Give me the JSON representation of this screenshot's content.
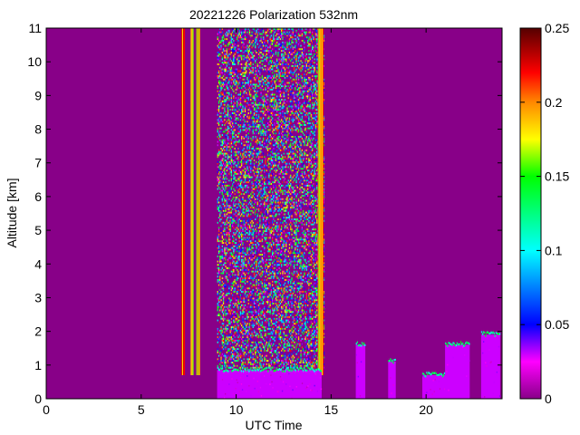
{
  "chart_data": {
    "type": "heatmap",
    "title": "20221226 Polarization 532nm",
    "xlabel": "UTC Time",
    "ylabel": "Altitude [km]",
    "xlim": [
      0,
      24
    ],
    "ylim": [
      0,
      11
    ],
    "x_ticks": [
      0,
      5,
      10,
      15,
      20
    ],
    "y_ticks": [
      0,
      1,
      2,
      3,
      4,
      5,
      6,
      7,
      8,
      9,
      10,
      11
    ],
    "colorbar": {
      "range": [
        0,
        0.25
      ],
      "ticks": [
        0,
        0.05,
        0.1,
        0.15,
        0.2,
        0.25
      ],
      "tick_labels": [
        "0",
        "0.05",
        "0.1",
        "0.15",
        "0.2",
        "0.25"
      ]
    },
    "background_value": 0.02,
    "noise_bands": [
      {
        "x_start": 7.1,
        "x_end": 7.25,
        "value": 0.2
      },
      {
        "x_start": 7.6,
        "x_end": 7.7,
        "value": 0.18
      },
      {
        "x_start": 7.9,
        "x_end": 8.1,
        "value": 0.19
      },
      {
        "x_start": 9.0,
        "x_end": 14.6,
        "value": "noisy"
      },
      {
        "x_start": 14.3,
        "x_end": 14.6,
        "value": 0.19
      }
    ],
    "cloud_layers": [
      {
        "x_start": 9.0,
        "x_end": 14.5,
        "y_top": 0.85,
        "value": 0.005
      },
      {
        "x_start": 16.3,
        "x_end": 16.8,
        "y_top": 1.6,
        "value": 0.006
      },
      {
        "x_start": 18.0,
        "x_end": 18.4,
        "y_top": 1.1,
        "value": 0.007
      },
      {
        "x_start": 19.8,
        "x_end": 21.4,
        "y_top": 0.7,
        "value": 0.006
      },
      {
        "x_start": 21.0,
        "x_end": 22.3,
        "y_top": 1.6,
        "value": 0.006
      },
      {
        "x_start": 22.9,
        "x_end": 23.9,
        "y_top": 1.9,
        "value": 0.006
      }
    ]
  }
}
